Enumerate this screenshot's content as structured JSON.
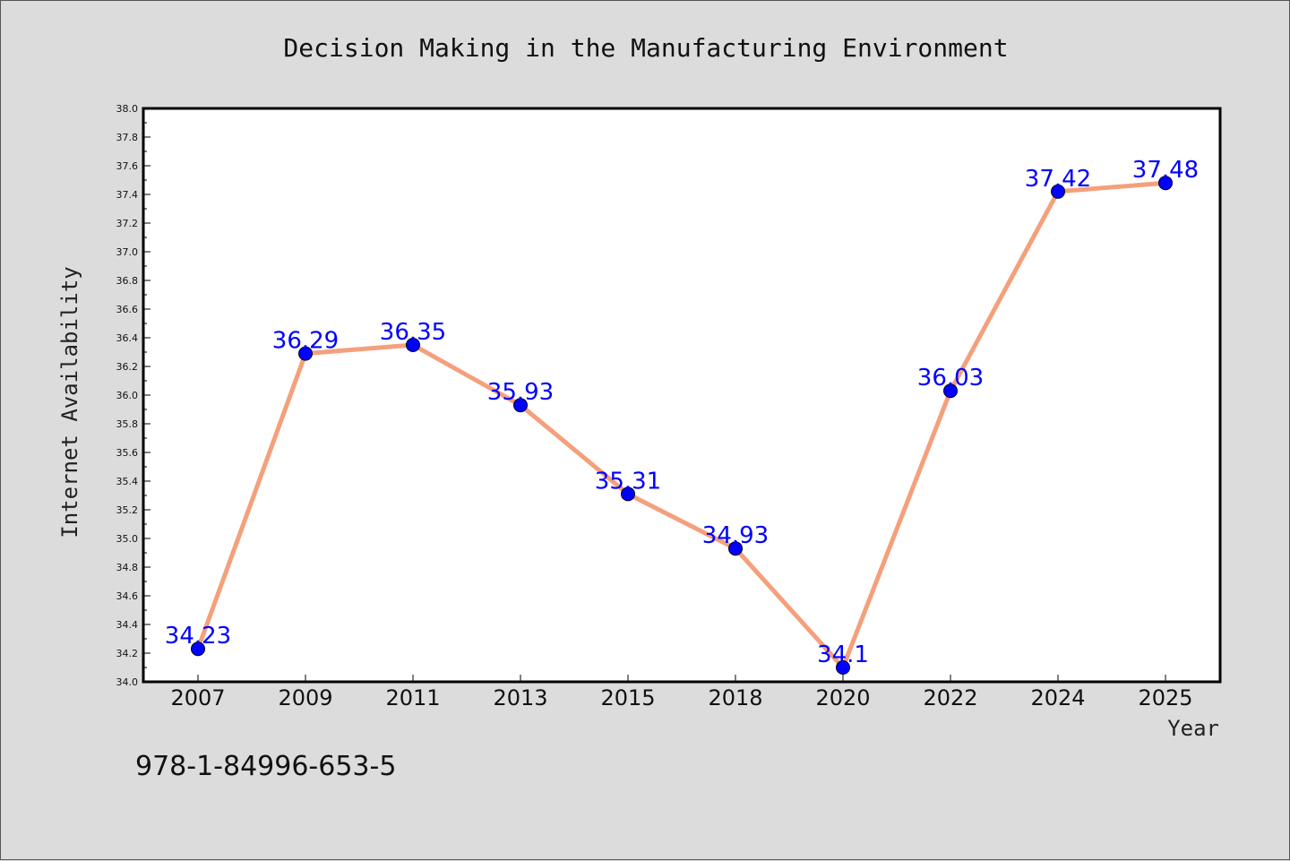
{
  "isbn_text": "978-1-84996-653-5",
  "colors": {
    "background": "#dcdcdc",
    "plot_background": "#ffffff",
    "line": "#f4a07c",
    "marker": "#0000ff",
    "data_label": "#0000ff"
  },
  "chart_data": {
    "type": "line",
    "title": "Decision Making in the Manufacturing Environment",
    "xlabel": "Year",
    "ylabel": "Internet Availability",
    "categories": [
      "2007",
      "2009",
      "2011",
      "2013",
      "2015",
      "2018",
      "2020",
      "2022",
      "2024",
      "2025"
    ],
    "series": [
      {
        "values": [
          34.23,
          36.29,
          36.35,
          35.93,
          35.31,
          34.93,
          34.1,
          36.03,
          37.42,
          37.48
        ],
        "data_labels": [
          "34.23",
          "36.29",
          "36.35",
          "35.93",
          "35.31",
          "34.93",
          "34.1",
          "36.03",
          "37.42",
          "37.48"
        ],
        "marker": "circle"
      }
    ],
    "ylim": [
      34.0,
      38.0
    ],
    "yticks": [
      "34.0",
      "34.2",
      "34.4",
      "34.6",
      "34.8",
      "35.0",
      "35.2",
      "35.4",
      "35.6",
      "35.8",
      "36.0",
      "36.2",
      "36.4",
      "36.6",
      "36.8",
      "37.0",
      "37.2",
      "37.4",
      "37.6",
      "37.8",
      "38.0"
    ],
    "grid": false,
    "legend": "none"
  }
}
